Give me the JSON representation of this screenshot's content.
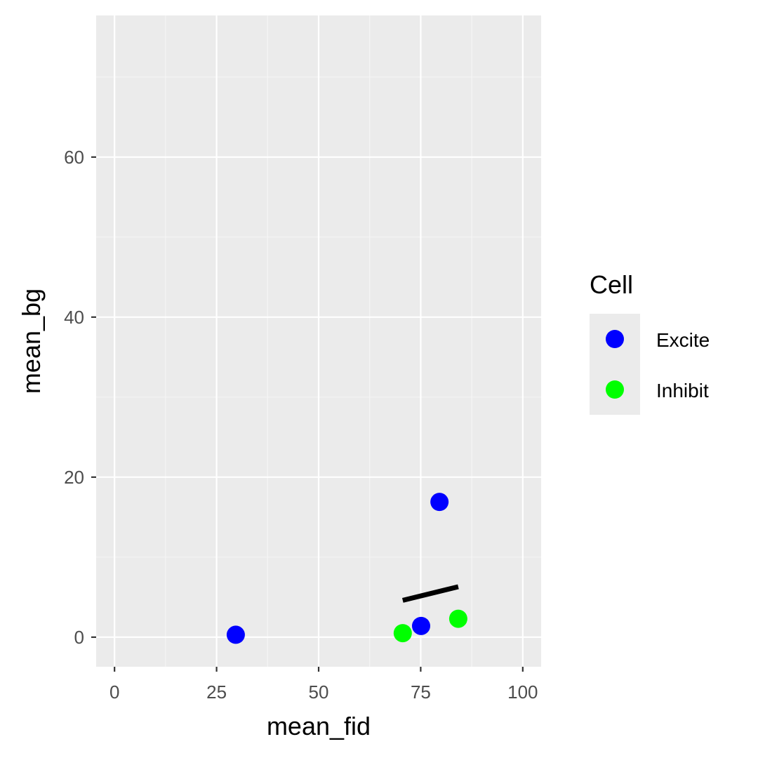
{
  "chart_data": {
    "type": "scatter",
    "xlabel": "mean_fid",
    "ylabel": "mean_bg",
    "xlim": [
      -4.5,
      104.5
    ],
    "ylim": [
      -3.7,
      77.7
    ],
    "x_ticks": [
      0,
      25,
      50,
      75,
      100
    ],
    "y_ticks": [
      0,
      20,
      40,
      60
    ],
    "x_tick_labels": [
      "0",
      "25",
      "50",
      "75",
      "100"
    ],
    "y_tick_labels": [
      "0",
      "20",
      "40",
      "60"
    ],
    "grid": true,
    "legend": {
      "title": "Cell",
      "position": "right",
      "entries": [
        {
          "label": "Excite",
          "color": "#0000ff"
        },
        {
          "label": "Inhibit",
          "color": "#00ff00"
        }
      ]
    },
    "series": [
      {
        "name": "Excite",
        "color": "#0000ff",
        "points": [
          {
            "x": 29.7,
            "y": 0.3
          },
          {
            "x": 75.1,
            "y": 1.4
          },
          {
            "x": 79.6,
            "y": 16.9
          }
        ]
      },
      {
        "name": "Inhibit",
        "color": "#00ff00",
        "points": [
          {
            "x": 70.6,
            "y": 0.5
          },
          {
            "x": 84.2,
            "y": 2.3
          }
        ]
      }
    ],
    "segments": [
      {
        "x1": 70.6,
        "y1": 4.6,
        "x2": 84.2,
        "y2": 6.3,
        "color": "#000000"
      }
    ],
    "colors": {
      "panel": "#ebebeb",
      "grid_major": "#ffffff",
      "grid_minor": "#f5f5f5",
      "axis_text": "#4d4d4d"
    }
  }
}
